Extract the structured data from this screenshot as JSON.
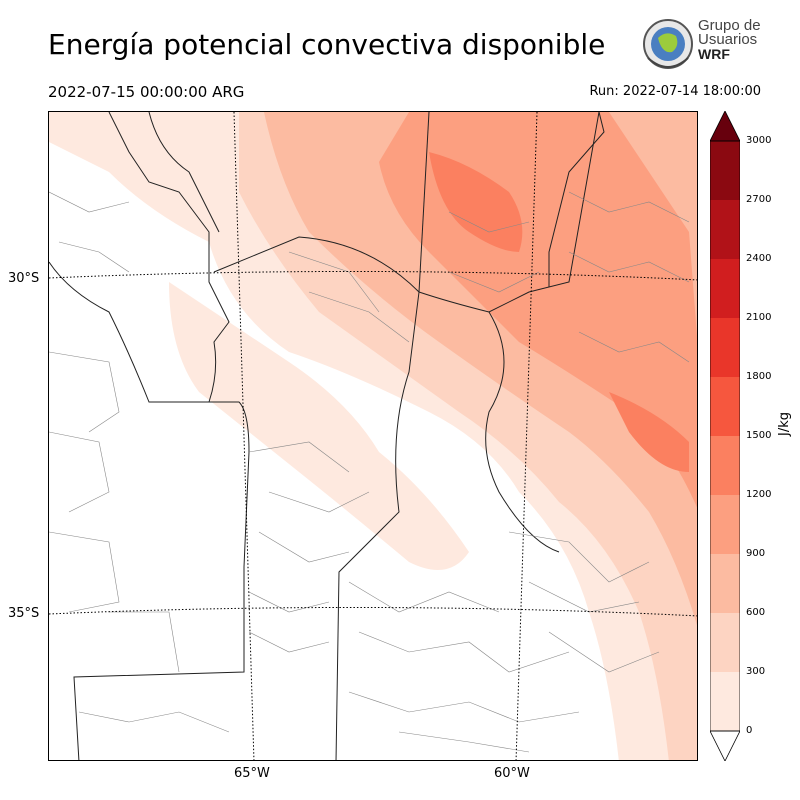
{
  "title": "Energía potencial convectiva disponible",
  "valid_time": "2022-07-15 00:00:00 ARG",
  "run_time": "Run: 2022-07-14 18:00:00",
  "logo": {
    "line1": "Grupo de",
    "line2": "Usuarios",
    "line3": "WRF"
  },
  "map": {
    "lat_labels": [
      "30°S",
      "35°S"
    ],
    "lon_labels": [
      "65°W",
      "60°W"
    ]
  },
  "colorbar": {
    "unit": "J/kg",
    "ticks": [
      "0",
      "300",
      "600",
      "900",
      "1200",
      "1500",
      "1800",
      "2100",
      "2400",
      "2700",
      "3000"
    ],
    "colors": [
      "#fee9df",
      "#fdd4c2",
      "#fcbba1",
      "#fc9f80",
      "#fb8060",
      "#f6573e",
      "#e9362a",
      "#d11e1f",
      "#b11218",
      "#8b0911",
      "#67000d"
    ]
  }
}
